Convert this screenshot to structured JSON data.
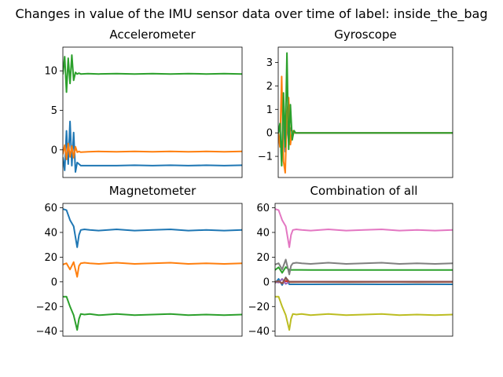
{
  "figure": {
    "suptitle": "Changes in value of the IMU sensor data over time of label: inside_the_bag"
  },
  "colors": {
    "c0": "#1f77b4",
    "c1": "#ff7f0e",
    "c2": "#2ca02c",
    "c3": "#d62728",
    "c4": "#9467bd",
    "c5": "#8c564b",
    "c6": "#e377c2",
    "c7": "#7f7f7f",
    "c8": "#bcbd22"
  },
  "chart_data": [
    {
      "type": "line",
      "title": "Accelerometer",
      "xlabel": "",
      "ylabel": "",
      "grid": false,
      "x_ticks_visible": false,
      "xlim": [
        0,
        100
      ],
      "ylim": [
        -3.5,
        13.0
      ],
      "yticks": [
        0,
        5,
        10
      ],
      "ytick_labels": [
        "0",
        "5",
        "10"
      ],
      "series": [
        {
          "color": "#1f77b4",
          "x": [
            0,
            1,
            2,
            3,
            4,
            5,
            6,
            7,
            8,
            9,
            10,
            14,
            20,
            30,
            40,
            50,
            60,
            70,
            80,
            90,
            100
          ],
          "y": [
            -1.0,
            -2.6,
            2.4,
            -1.8,
            3.6,
            -2.0,
            2.2,
            -2.8,
            -1.6,
            -1.8,
            -2.0,
            -2.0,
            -2.0,
            -2.0,
            -1.95,
            -2.0,
            -1.95,
            -2.0,
            -1.95,
            -2.0,
            -1.95
          ]
        },
        {
          "color": "#ff7f0e",
          "x": [
            0,
            1,
            2,
            3,
            4,
            5,
            6,
            7,
            8,
            9,
            10,
            14,
            20,
            30,
            40,
            50,
            60,
            70,
            80,
            90,
            100
          ],
          "y": [
            -0.5,
            0.6,
            -1.2,
            0.8,
            -0.9,
            0.5,
            -1.0,
            0.4,
            -0.3,
            -0.2,
            -0.3,
            -0.25,
            -0.2,
            -0.25,
            -0.2,
            -0.25,
            -0.2,
            -0.25,
            -0.2,
            -0.25,
            -0.2
          ]
        },
        {
          "color": "#2ca02c",
          "x": [
            0,
            1,
            2,
            3,
            4,
            5,
            6,
            7,
            8,
            9,
            10,
            14,
            20,
            30,
            40,
            50,
            60,
            70,
            80,
            90,
            100
          ],
          "y": [
            9.6,
            11.8,
            7.3,
            11.6,
            8.4,
            12.0,
            8.8,
            9.8,
            9.6,
            9.7,
            9.6,
            9.65,
            9.6,
            9.65,
            9.6,
            9.65,
            9.6,
            9.65,
            9.6,
            9.65,
            9.6
          ]
        }
      ]
    },
    {
      "type": "line",
      "title": "Gyroscope",
      "xlabel": "",
      "ylabel": "",
      "grid": false,
      "x_ticks_visible": false,
      "xlim": [
        0,
        100
      ],
      "ylim": [
        -1.9,
        3.65
      ],
      "yticks": [
        -1,
        0,
        1,
        2,
        3
      ],
      "ytick_labels": [
        "−1",
        "0",
        "1",
        "2",
        "3"
      ],
      "series": [
        {
          "color": "#1f77b4",
          "x": [
            0,
            1,
            2,
            3,
            4,
            5,
            6,
            7,
            8,
            9,
            10,
            20,
            40,
            60,
            80,
            100
          ],
          "y": [
            0.0,
            0.3,
            -1.2,
            0.6,
            -0.8,
            0.5,
            -0.4,
            0.2,
            0.05,
            0.0,
            0.0,
            0.0,
            0.0,
            0.0,
            0.0,
            0.0
          ]
        },
        {
          "color": "#ff7f0e",
          "x": [
            0,
            1,
            2,
            3,
            4,
            5,
            6,
            7,
            8,
            9,
            10,
            20,
            40,
            60,
            80,
            100
          ],
          "y": [
            0.0,
            -0.6,
            2.4,
            -1.2,
            -1.7,
            0.8,
            1.5,
            -0.5,
            0.1,
            0.0,
            0.0,
            0.0,
            0.0,
            0.0,
            0.0,
            0.0
          ]
        },
        {
          "color": "#2ca02c",
          "x": [
            0,
            1,
            2,
            3,
            4,
            5,
            6,
            7,
            8,
            9,
            10,
            20,
            40,
            60,
            80,
            100
          ],
          "y": [
            0.0,
            0.4,
            -1.4,
            1.7,
            -0.6,
            3.4,
            -0.7,
            1.2,
            -0.3,
            0.1,
            0.0,
            0.0,
            0.0,
            0.0,
            0.0,
            0.0
          ]
        }
      ]
    },
    {
      "type": "line",
      "title": "Magnetometer",
      "xlabel": "",
      "ylabel": "",
      "grid": false,
      "x_ticks_visible": false,
      "xlim": [
        0,
        100
      ],
      "ylim": [
        -44,
        63.5
      ],
      "yticks": [
        -40,
        -20,
        0,
        20,
        40,
        60
      ],
      "ytick_labels": [
        "−40",
        "−20",
        "0",
        "20",
        "40",
        "60"
      ],
      "series": [
        {
          "color": "#1f77b4",
          "x": [
            0,
            2,
            4,
            6,
            8,
            9,
            10,
            12,
            15,
            20,
            30,
            40,
            50,
            60,
            70,
            80,
            90,
            100
          ],
          "y": [
            59,
            58,
            50,
            45,
            28,
            38,
            42,
            42.5,
            42,
            41.5,
            42.5,
            41.5,
            42,
            42.5,
            41.5,
            42,
            41.5,
            42
          ]
        },
        {
          "color": "#ff7f0e",
          "x": [
            0,
            2,
            4,
            6,
            8,
            9,
            10,
            12,
            15,
            20,
            30,
            40,
            50,
            60,
            70,
            80,
            90,
            100
          ],
          "y": [
            14,
            15,
            10,
            16,
            4,
            13,
            15,
            15.5,
            15,
            14.5,
            15.5,
            14.5,
            15,
            15.5,
            14.5,
            15,
            14.5,
            15
          ]
        },
        {
          "color": "#2ca02c",
          "x": [
            0,
            2,
            4,
            6,
            8,
            9,
            10,
            12,
            15,
            20,
            30,
            40,
            50,
            60,
            70,
            80,
            90,
            100
          ],
          "y": [
            -12,
            -12,
            -20,
            -27,
            -39,
            -30,
            -26,
            -26.5,
            -26,
            -27,
            -26,
            -27,
            -26.5,
            -26,
            -27,
            -26.5,
            -27,
            -26.5
          ]
        }
      ]
    },
    {
      "type": "line",
      "title": "Combination of all",
      "xlabel": "",
      "ylabel": "",
      "grid": false,
      "x_ticks_visible": false,
      "xlim": [
        0,
        100
      ],
      "ylim": [
        -44,
        63.5
      ],
      "yticks": [
        -40,
        -20,
        0,
        20,
        40,
        60
      ],
      "ytick_labels": [
        "−40",
        "−20",
        "0",
        "20",
        "40",
        "60"
      ],
      "series": [
        {
          "color": "#1f77b4",
          "x": [
            0,
            2,
            4,
            6,
            8,
            10,
            20,
            40,
            60,
            80,
            100
          ],
          "y": [
            -1.0,
            2.4,
            -2.6,
            3.6,
            -2.0,
            -2.0,
            -2.0,
            -1.95,
            -2.0,
            -1.95,
            -2.0
          ]
        },
        {
          "color": "#ff7f0e",
          "x": [
            0,
            2,
            4,
            6,
            8,
            10,
            20,
            40,
            60,
            80,
            100
          ],
          "y": [
            -0.5,
            0.6,
            -1.2,
            0.8,
            -0.3,
            -0.25,
            -0.2,
            -0.25,
            -0.2,
            -0.25,
            -0.2
          ]
        },
        {
          "color": "#2ca02c",
          "x": [
            0,
            2,
            4,
            6,
            8,
            10,
            20,
            40,
            60,
            80,
            100
          ],
          "y": [
            9.6,
            11.8,
            7.3,
            12.0,
            9.6,
            9.7,
            9.6,
            9.65,
            9.6,
            9.65,
            9.6
          ]
        },
        {
          "color": "#d62728",
          "x": [
            0,
            2,
            4,
            6,
            8,
            10,
            20,
            40,
            60,
            80,
            100
          ],
          "y": [
            0.0,
            0.3,
            -1.2,
            0.6,
            0.0,
            0.0,
            0.0,
            0.0,
            0.0,
            0.0,
            0.0
          ]
        },
        {
          "color": "#9467bd",
          "x": [
            0,
            2,
            4,
            6,
            8,
            10,
            20,
            40,
            60,
            80,
            100
          ],
          "y": [
            0.0,
            -0.6,
            2.4,
            -1.7,
            0.0,
            0.0,
            0.0,
            0.0,
            0.0,
            0.0,
            0.0
          ]
        },
        {
          "color": "#8c564b",
          "x": [
            0,
            2,
            4,
            6,
            8,
            10,
            20,
            40,
            60,
            80,
            100
          ],
          "y": [
            0.0,
            0.4,
            -1.4,
            3.4,
            0.0,
            0.0,
            0.0,
            0.0,
            0.0,
            0.0,
            0.0
          ]
        },
        {
          "color": "#e377c2",
          "x": [
            0,
            2,
            4,
            6,
            8,
            9,
            10,
            12,
            15,
            20,
            30,
            40,
            50,
            60,
            70,
            80,
            90,
            100
          ],
          "y": [
            59,
            58,
            50,
            45,
            28,
            38,
            42,
            42.5,
            42,
            41.5,
            42.5,
            41.5,
            42,
            42.5,
            41.5,
            42,
            41.5,
            42
          ]
        },
        {
          "color": "#7f7f7f",
          "x": [
            0,
            2,
            4,
            6,
            8,
            9,
            10,
            12,
            15,
            20,
            30,
            40,
            50,
            60,
            70,
            80,
            90,
            100
          ],
          "y": [
            14,
            15,
            10,
            18,
            6,
            13,
            15,
            15.5,
            15,
            14.5,
            15.5,
            14.5,
            15,
            15.5,
            14.5,
            15,
            14.5,
            15
          ]
        },
        {
          "color": "#bcbd22",
          "x": [
            0,
            2,
            4,
            6,
            8,
            9,
            10,
            12,
            15,
            20,
            30,
            40,
            50,
            60,
            70,
            80,
            90,
            100
          ],
          "y": [
            -12,
            -12,
            -20,
            -27,
            -39,
            -30,
            -26,
            -26.5,
            -26,
            -27,
            -26,
            -27,
            -26.5,
            -26,
            -27,
            -26.5,
            -27,
            -26.5
          ]
        }
      ]
    }
  ]
}
